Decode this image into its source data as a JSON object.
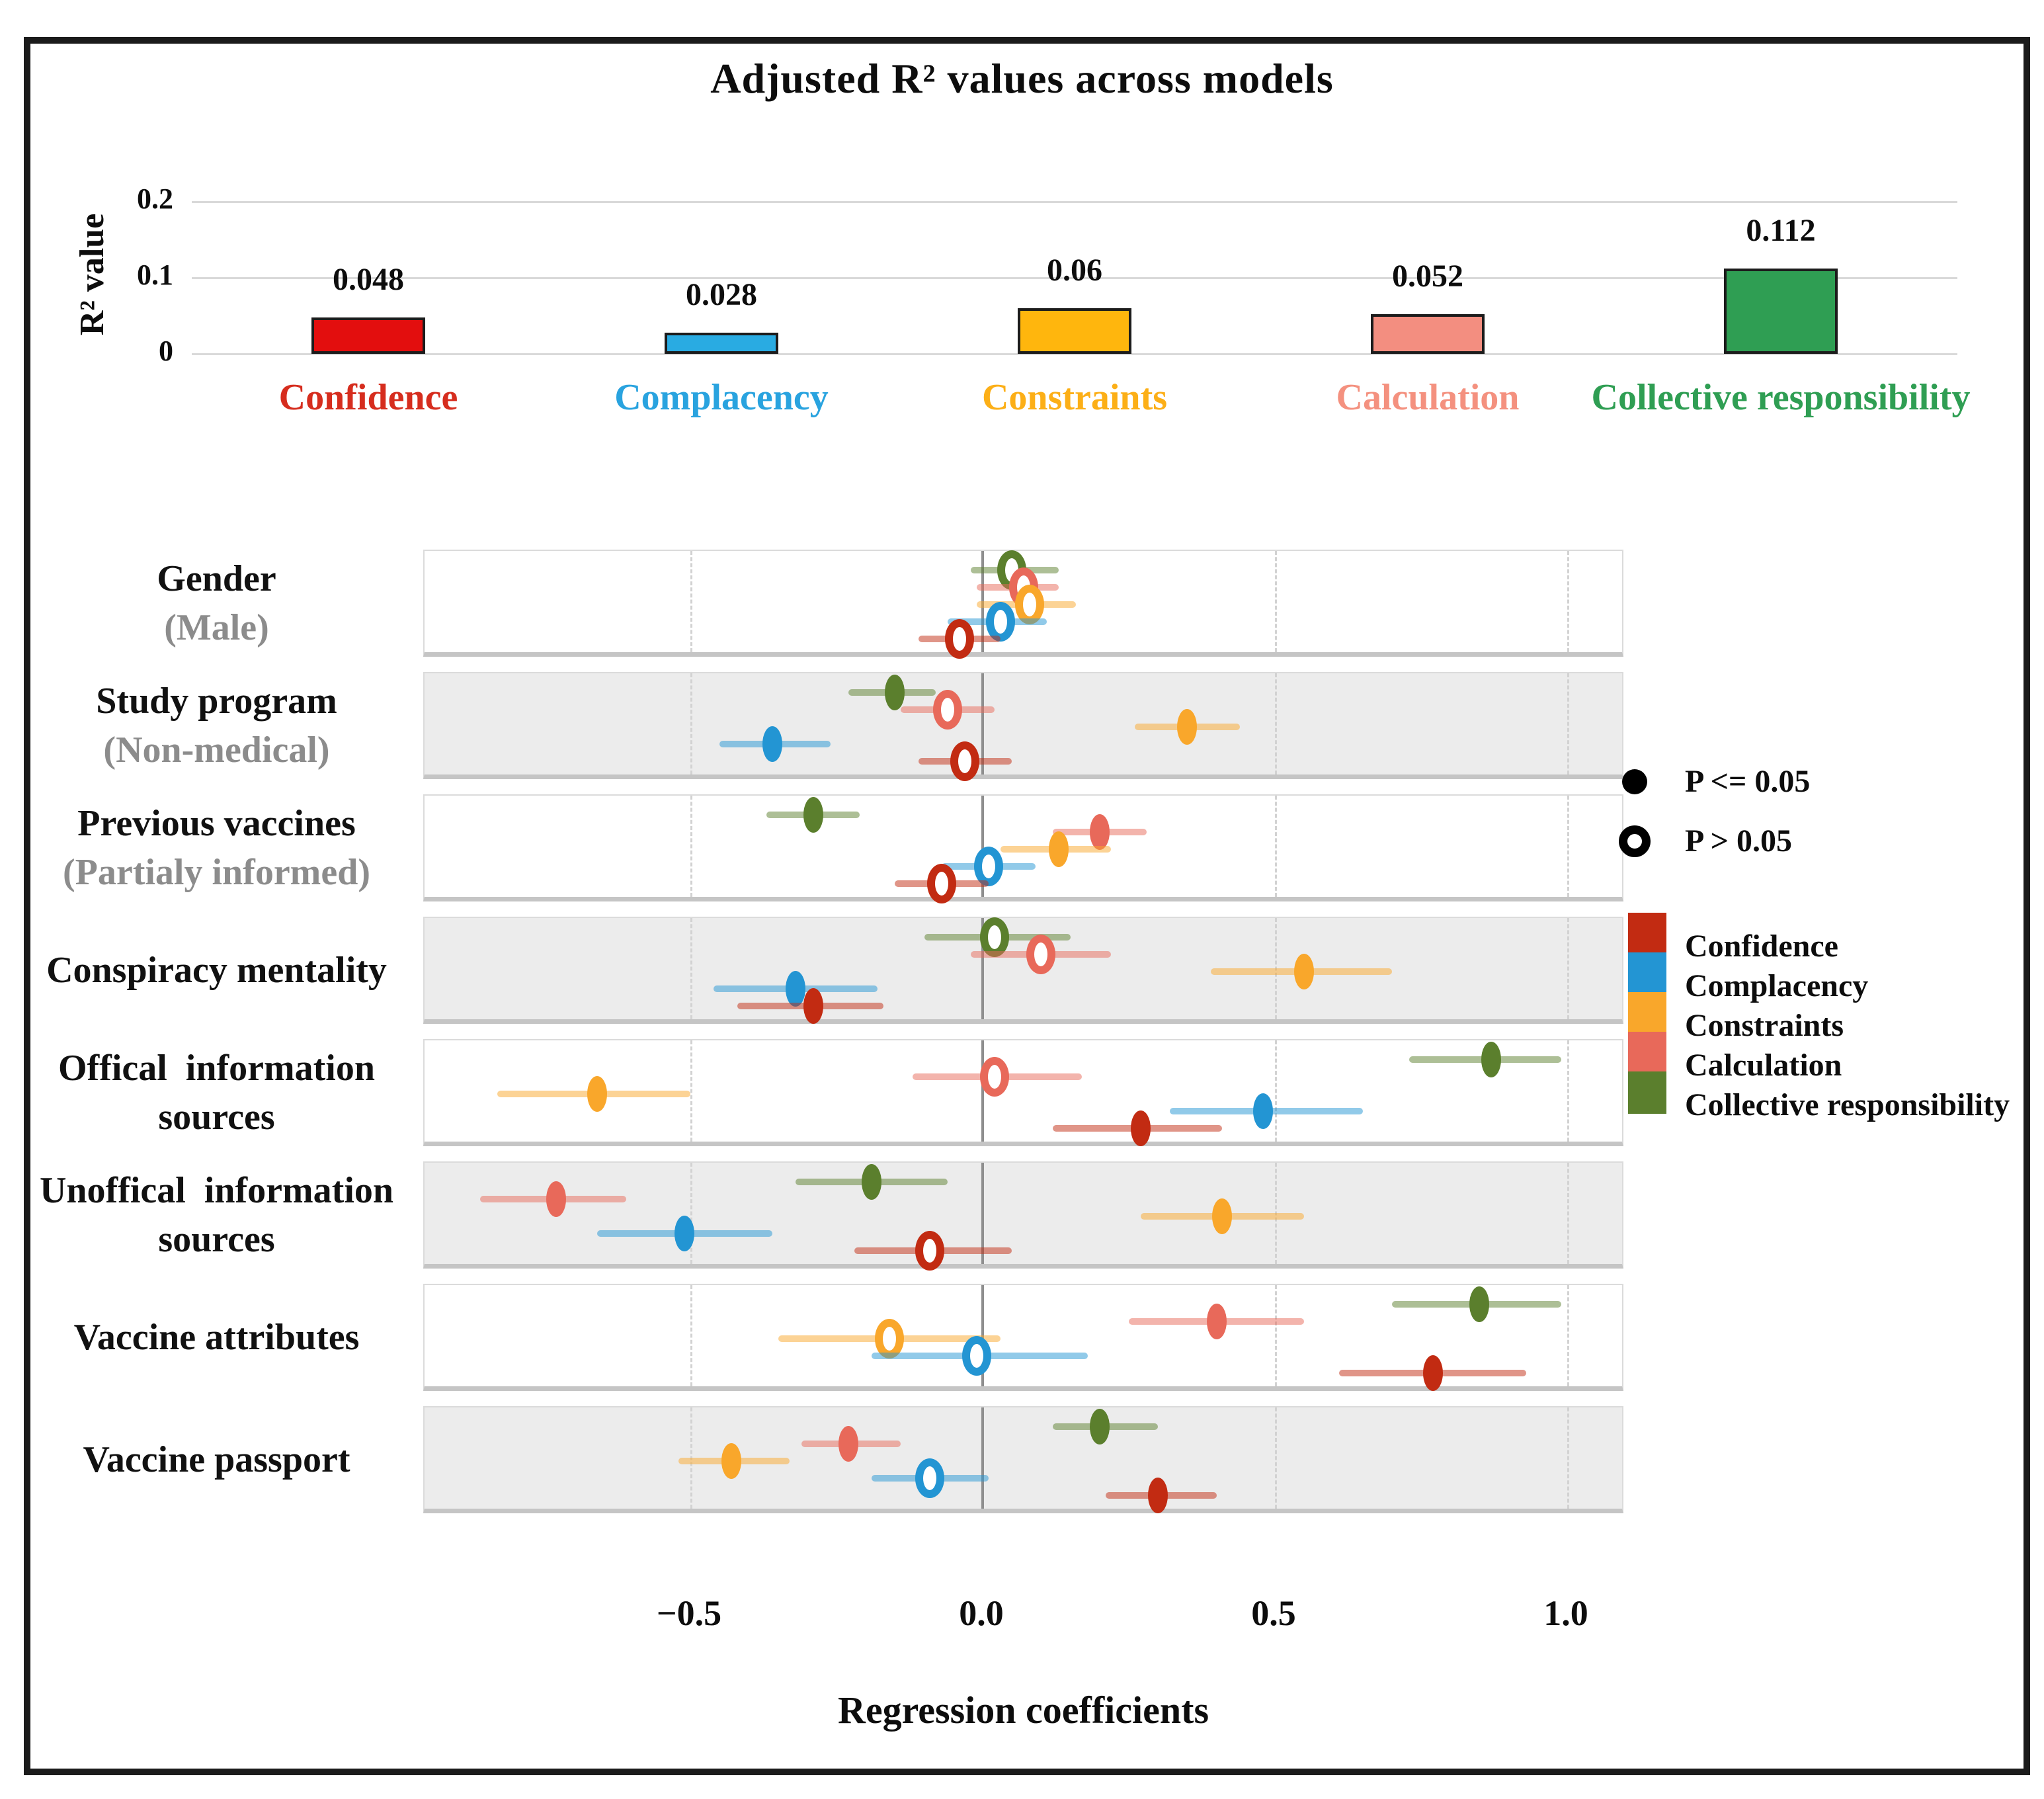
{
  "colors": {
    "series": [
      {
        "name": "Confidence",
        "bar": "#E30E0E",
        "marker": "#C22B12",
        "label": "#D62D1E"
      },
      {
        "name": "Complacency",
        "bar": "#29ABE2",
        "marker": "#2395D3",
        "label": "#29A3DF"
      },
      {
        "name": "Constraints",
        "bar": "#FFB60D",
        "marker": "#F9A72B",
        "label": "#FCAF17"
      },
      {
        "name": "Calculation",
        "bar": "#F38E80",
        "marker": "#E8695A",
        "label": "#F4917F"
      },
      {
        "name": "Collective responsibility",
        "bar": "#2F9E53",
        "marker": "#5B7F2D",
        "label": "#2F9E53"
      }
    ],
    "grid": "#D9D9D9",
    "zero_line": "#8F8F8F",
    "band_shade": "#ECECEC",
    "label_gray": "#8C8C8C"
  },
  "chart_data": [
    {
      "type": "bar",
      "title": "Adjusted R² values across models",
      "ylabel": "R² value",
      "xlabel": "",
      "categories": [
        "Confidence",
        "Complacency",
        "Constraints",
        "Calculation",
        "Collective responsibility"
      ],
      "values": [
        0.048,
        0.028,
        0.06,
        0.052,
        0.112
      ],
      "value_labels": [
        "0.048",
        "0.028",
        "0.06",
        "0.052",
        "0.112"
      ],
      "ylim": [
        0,
        0.2
      ],
      "ytick_values": [
        0,
        0.1,
        0.2
      ],
      "ytick_labels": [
        "0",
        "0.1",
        "0.2"
      ],
      "grid": true
    },
    {
      "type": "forest",
      "xlabel": "Regression coefficients",
      "xlim": [
        -0.95,
        1.1
      ],
      "xtick_values": [
        -0.5,
        0,
        0.5,
        1
      ],
      "xtick_labels": [
        "−0.5",
        "0.0",
        "0.5",
        "1.0"
      ],
      "series_order_top_to_bottom": [
        "Collective responsibility",
        "Calculation",
        "Constraints",
        "Complacency",
        "Confidence"
      ],
      "legend": {
        "significant": "P <= 0.05",
        "not_significant": "P > 0.05",
        "series": [
          "Confidence",
          "Complacency",
          "Constraints",
          "Calculation",
          "Collective responsibility"
        ]
      },
      "rows": [
        {
          "label_lines": [
            {
              "text": "Gender",
              "gray": false
            },
            {
              "text": "(Male)",
              "gray": true
            }
          ],
          "shaded": false,
          "points": [
            {
              "series": "Collective responsibility",
              "est": 0.05,
              "lo": -0.02,
              "hi": 0.13,
              "significant": false
            },
            {
              "series": "Calculation",
              "est": 0.07,
              "lo": -0.01,
              "hi": 0.13,
              "significant": false
            },
            {
              "series": "Constraints",
              "est": 0.08,
              "lo": -0.01,
              "hi": 0.16,
              "significant": false
            },
            {
              "series": "Complacency",
              "est": 0.03,
              "lo": -0.06,
              "hi": 0.11,
              "significant": false
            },
            {
              "series": "Confidence",
              "est": -0.04,
              "lo": -0.11,
              "hi": 0.03,
              "significant": false
            }
          ]
        },
        {
          "label_lines": [
            {
              "text": "Study program",
              "gray": false
            },
            {
              "text": "(Non-medical)",
              "gray": true
            }
          ],
          "shaded": true,
          "points": [
            {
              "series": "Collective responsibility",
              "est": -0.15,
              "lo": -0.23,
              "hi": -0.08,
              "significant": true
            },
            {
              "series": "Calculation",
              "est": -0.06,
              "lo": -0.14,
              "hi": 0.02,
              "significant": false
            },
            {
              "series": "Constraints",
              "est": 0.35,
              "lo": 0.26,
              "hi": 0.44,
              "significant": true
            },
            {
              "series": "Complacency",
              "est": -0.36,
              "lo": -0.45,
              "hi": -0.26,
              "significant": true
            },
            {
              "series": "Confidence",
              "est": -0.03,
              "lo": -0.11,
              "hi": 0.05,
              "significant": false
            }
          ]
        },
        {
          "label_lines": [
            {
              "text": "Previous vaccines",
              "gray": false
            },
            {
              "text": "(Partialy informed)",
              "gray": true
            }
          ],
          "shaded": false,
          "points": [
            {
              "series": "Collective responsibility",
              "est": -0.29,
              "lo": -0.37,
              "hi": -0.21,
              "significant": true
            },
            {
              "series": "Calculation",
              "est": 0.2,
              "lo": 0.12,
              "hi": 0.28,
              "significant": true
            },
            {
              "series": "Constraints",
              "est": 0.13,
              "lo": 0.03,
              "hi": 0.22,
              "significant": true
            },
            {
              "series": "Complacency",
              "est": 0.01,
              "lo": -0.07,
              "hi": 0.09,
              "significant": false
            },
            {
              "series": "Confidence",
              "est": -0.07,
              "lo": -0.15,
              "hi": 0.01,
              "significant": false
            }
          ]
        },
        {
          "label_lines": [
            {
              "text": "Conspiracy mentality",
              "gray": false
            }
          ],
          "shaded": true,
          "points": [
            {
              "series": "Collective responsibility",
              "est": 0.02,
              "lo": -0.1,
              "hi": 0.15,
              "significant": false
            },
            {
              "series": "Calculation",
              "est": 0.1,
              "lo": -0.02,
              "hi": 0.22,
              "significant": false
            },
            {
              "series": "Constraints",
              "est": 0.55,
              "lo": 0.39,
              "hi": 0.7,
              "significant": true
            },
            {
              "series": "Complacency",
              "est": -0.32,
              "lo": -0.46,
              "hi": -0.18,
              "significant": true
            },
            {
              "series": "Confidence",
              "est": -0.29,
              "lo": -0.42,
              "hi": -0.17,
              "significant": true
            }
          ]
        },
        {
          "label_lines": [
            {
              "text": "Offical  information",
              "gray": false
            },
            {
              "text": "sources",
              "gray": false
            }
          ],
          "shaded": false,
          "points": [
            {
              "series": "Collective responsibility",
              "est": 0.87,
              "lo": 0.73,
              "hi": 0.99,
              "significant": true
            },
            {
              "series": "Calculation",
              "est": 0.02,
              "lo": -0.12,
              "hi": 0.17,
              "significant": false
            },
            {
              "series": "Constraints",
              "est": -0.66,
              "lo": -0.83,
              "hi": -0.5,
              "significant": true
            },
            {
              "series": "Complacency",
              "est": 0.48,
              "lo": 0.32,
              "hi": 0.65,
              "significant": true
            },
            {
              "series": "Confidence",
              "est": 0.27,
              "lo": 0.12,
              "hi": 0.41,
              "significant": true
            }
          ]
        },
        {
          "label_lines": [
            {
              "text": "Unoffical  information",
              "gray": false
            },
            {
              "text": "sources",
              "gray": false
            }
          ],
          "shaded": true,
          "points": [
            {
              "series": "Collective responsibility",
              "est": -0.19,
              "lo": -0.32,
              "hi": -0.06,
              "significant": true
            },
            {
              "series": "Calculation",
              "est": -0.73,
              "lo": -0.86,
              "hi": -0.61,
              "significant": true
            },
            {
              "series": "Constraints",
              "est": 0.41,
              "lo": 0.27,
              "hi": 0.55,
              "significant": true
            },
            {
              "series": "Complacency",
              "est": -0.51,
              "lo": -0.66,
              "hi": -0.36,
              "significant": true
            },
            {
              "series": "Confidence",
              "est": -0.09,
              "lo": -0.22,
              "hi": 0.05,
              "significant": false
            }
          ]
        },
        {
          "label_lines": [
            {
              "text": "Vaccine attributes",
              "gray": false
            }
          ],
          "shaded": false,
          "points": [
            {
              "series": "Collective responsibility",
              "est": 0.85,
              "lo": 0.7,
              "hi": 0.99,
              "significant": true
            },
            {
              "series": "Calculation",
              "est": 0.4,
              "lo": 0.25,
              "hi": 0.55,
              "significant": true
            },
            {
              "series": "Constraints",
              "est": -0.16,
              "lo": -0.35,
              "hi": 0.03,
              "significant": false
            },
            {
              "series": "Complacency",
              "est": -0.01,
              "lo": -0.19,
              "hi": 0.18,
              "significant": false
            },
            {
              "series": "Confidence",
              "est": 0.77,
              "lo": 0.61,
              "hi": 0.93,
              "significant": true
            }
          ]
        },
        {
          "label_lines": [
            {
              "text": "Vaccine passport",
              "gray": false
            }
          ],
          "shaded": true,
          "points": [
            {
              "series": "Collective responsibility",
              "est": 0.2,
              "lo": 0.12,
              "hi": 0.3,
              "significant": true
            },
            {
              "series": "Calculation",
              "est": -0.23,
              "lo": -0.31,
              "hi": -0.14,
              "significant": true
            },
            {
              "series": "Constraints",
              "est": -0.43,
              "lo": -0.52,
              "hi": -0.33,
              "significant": true
            },
            {
              "series": "Complacency",
              "est": -0.09,
              "lo": -0.19,
              "hi": 0.01,
              "significant": false
            },
            {
              "series": "Confidence",
              "est": 0.3,
              "lo": 0.21,
              "hi": 0.4,
              "significant": true
            }
          ]
        }
      ]
    }
  ]
}
